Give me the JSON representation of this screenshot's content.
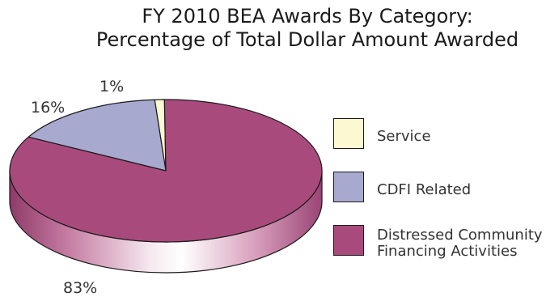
{
  "chart_data": {
    "type": "pie",
    "title": "FY 2010 BEA Awards By Category:",
    "subtitle": "Percentage of Total Dollar Amount Awarded",
    "slices": [
      {
        "label": "Service",
        "value": 1,
        "value_label": "1%",
        "color": "#fcf9d2"
      },
      {
        "label": "CDFI Related",
        "value": 16,
        "value_label": "16%",
        "color": "#a7a9cf"
      },
      {
        "label": "Distressed Community\nFinancing Activities",
        "value": 83,
        "value_label": "83%",
        "color": "#a94a7c"
      }
    ],
    "legend_position": "right",
    "style": "3d"
  }
}
